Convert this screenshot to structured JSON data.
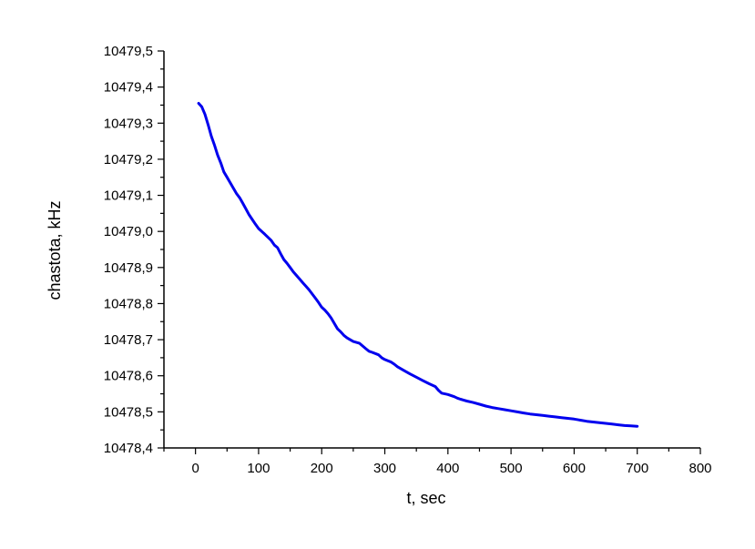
{
  "chart_data": {
    "type": "line",
    "title": "",
    "xlabel": "t, sec",
    "ylabel": "chastota, kHz",
    "xlim": [
      -50,
      800
    ],
    "ylim": [
      10478.4,
      10479.5
    ],
    "x_ticks": [
      "0",
      "100",
      "200",
      "300",
      "400",
      "500",
      "600",
      "700",
      "800"
    ],
    "y_ticks": [
      "10478,4",
      "10478,5",
      "10478,6",
      "10478,7",
      "10478,8",
      "10478,9",
      "10479,0",
      "10479,1",
      "10479,2",
      "10479,3",
      "10479,4",
      "10479,5"
    ],
    "grid": false,
    "series": [
      {
        "color": "#0000ee",
        "x": [
          5,
          10,
          15,
          20,
          25,
          30,
          35,
          40,
          45,
          50,
          55,
          60,
          65,
          70,
          75,
          80,
          85,
          90,
          95,
          100,
          110,
          120,
          125,
          130,
          135,
          140,
          145,
          150,
          155,
          160,
          165,
          170,
          175,
          180,
          190,
          195,
          200,
          205,
          210,
          215,
          220,
          225,
          230,
          235,
          240,
          245,
          250,
          260,
          270,
          275,
          280,
          290,
          295,
          300,
          310,
          315,
          320,
          330,
          340,
          350,
          360,
          370,
          380,
          385,
          390,
          400,
          410,
          415,
          420,
          430,
          440,
          450,
          460,
          470,
          480,
          490,
          500,
          510,
          520,
          530,
          540,
          550,
          560,
          570,
          580,
          590,
          600,
          610,
          620,
          630,
          640,
          650,
          660,
          670,
          680,
          690,
          700
        ],
        "y": [
          10479.355,
          10479.345,
          10479.325,
          10479.296,
          10479.264,
          10479.24,
          10479.212,
          10479.19,
          10479.165,
          10479.15,
          10479.135,
          10479.12,
          10479.105,
          10479.093,
          10479.078,
          10479.062,
          10479.046,
          10479.033,
          10479.02,
          10479.008,
          10478.992,
          10478.975,
          10478.962,
          10478.955,
          10478.938,
          10478.922,
          10478.912,
          10478.9,
          10478.888,
          10478.878,
          10478.868,
          10478.858,
          10478.848,
          10478.838,
          10478.815,
          10478.803,
          10478.79,
          10478.782,
          10478.772,
          10478.76,
          10478.745,
          10478.73,
          10478.722,
          10478.712,
          10478.705,
          10478.7,
          10478.695,
          10478.69,
          10478.675,
          10478.668,
          10478.665,
          10478.658,
          10478.65,
          10478.645,
          10478.638,
          10478.632,
          10478.625,
          10478.615,
          10478.605,
          10478.596,
          10478.587,
          10478.578,
          10478.57,
          10478.56,
          10478.552,
          10478.548,
          10478.542,
          10478.538,
          10478.535,
          10478.53,
          10478.526,
          10478.521,
          10478.516,
          10478.512,
          10478.509,
          10478.506,
          10478.503,
          10478.5,
          10478.497,
          10478.494,
          10478.492,
          10478.49,
          10478.488,
          10478.486,
          10478.484,
          10478.482,
          10478.48,
          10478.477,
          10478.474,
          10478.472,
          10478.47,
          10478.468,
          10478.466,
          10478.464,
          10478.462,
          10478.461,
          10478.46
        ]
      }
    ]
  }
}
